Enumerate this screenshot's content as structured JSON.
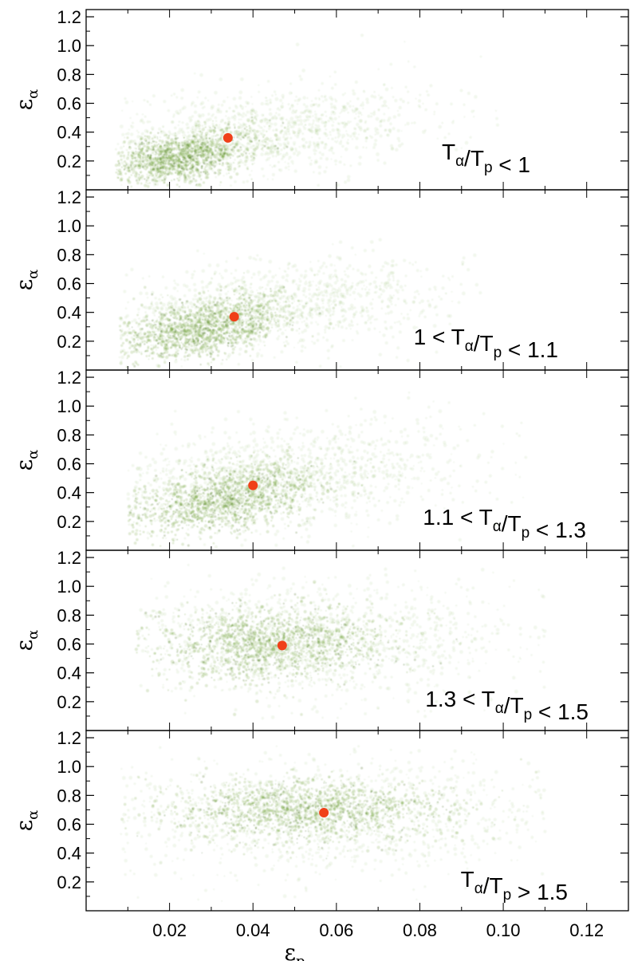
{
  "chart_data": [
    {
      "type": "heatmap",
      "annotation": {
        "parts": [
          {
            "t": "T",
            "sub": "α"
          },
          {
            "t": "/T",
            "sub": "p"
          },
          {
            "t": " < 1"
          }
        ]
      },
      "xlabel": "",
      "ylabel": "ε",
      "ylabel_sub": "α",
      "xlim": [
        0.0,
        0.13
      ],
      "ylim": [
        0.0,
        1.25
      ],
      "yticks": [
        "0.2",
        "0.4",
        "0.6",
        "0.8",
        "1.0",
        "1.2"
      ],
      "mean_point": {
        "x": 0.034,
        "y": 0.36,
        "color": "#f04018"
      },
      "density_core": {
        "x": 0.022,
        "y": 0.22,
        "sx": 0.009,
        "sy": 0.1,
        "rho": 0.5
      },
      "density_halo": {
        "x": 0.04,
        "y": 0.38,
        "sx": 0.022,
        "sy": 0.17,
        "rho": 0.4
      },
      "x_extent": [
        0.007,
        0.1
      ]
    },
    {
      "type": "heatmap",
      "annotation": {
        "parts": [
          {
            "t": "1 < T",
            "sub": "α"
          },
          {
            "t": "/T",
            "sub": "p"
          },
          {
            "t": " < 1.1"
          }
        ]
      },
      "xlabel": "",
      "ylabel": "ε",
      "ylabel_sub": "α",
      "xlim": [
        0.0,
        0.13
      ],
      "ylim": [
        0.0,
        1.25
      ],
      "yticks": [
        "0.2",
        "0.4",
        "0.6",
        "0.8",
        "1.0",
        "1.2"
      ],
      "mean_point": {
        "x": 0.0355,
        "y": 0.37,
        "color": "#f04018"
      },
      "density_core": {
        "x": 0.028,
        "y": 0.29,
        "sx": 0.01,
        "sy": 0.11,
        "rho": 0.5
      },
      "density_halo": {
        "x": 0.042,
        "y": 0.42,
        "sx": 0.022,
        "sy": 0.17,
        "rho": 0.4
      },
      "x_extent": [
        0.008,
        0.095
      ]
    },
    {
      "type": "heatmap",
      "annotation": {
        "parts": [
          {
            "t": "1.1 < T",
            "sub": "α"
          },
          {
            "t": "/T",
            "sub": "p"
          },
          {
            "t": " < 1.3"
          }
        ]
      },
      "xlabel": "",
      "ylabel": "ε",
      "ylabel_sub": "α",
      "xlim": [
        0.0,
        0.13
      ],
      "ylim": [
        0.0,
        1.25
      ],
      "yticks": [
        "0.2",
        "0.4",
        "0.6",
        "0.8",
        "1.0",
        "1.2"
      ],
      "mean_point": {
        "x": 0.04,
        "y": 0.45,
        "color": "#f04018"
      },
      "density_core": {
        "x": 0.033,
        "y": 0.36,
        "sx": 0.011,
        "sy": 0.12,
        "rho": 0.45
      },
      "density_halo": {
        "x": 0.046,
        "y": 0.5,
        "sx": 0.023,
        "sy": 0.19,
        "rho": 0.35
      },
      "x_extent": [
        0.01,
        0.11
      ]
    },
    {
      "type": "heatmap",
      "annotation": {
        "parts": [
          {
            "t": "1.3 < T",
            "sub": "α"
          },
          {
            "t": "/T",
            "sub": "p"
          },
          {
            "t": " < 1.5"
          }
        ]
      },
      "xlabel": "",
      "ylabel": "ε",
      "ylabel_sub": "α",
      "xlim": [
        0.0,
        0.13
      ],
      "ylim": [
        0.0,
        1.25
      ],
      "yticks": [
        "0.2",
        "0.4",
        "0.6",
        "0.8",
        "1.0",
        "1.2"
      ],
      "mean_point": {
        "x": 0.047,
        "y": 0.59,
        "color": "#f04018"
      },
      "density_core": {
        "x": 0.045,
        "y": 0.6,
        "sx": 0.014,
        "sy": 0.13,
        "rho": 0.1
      },
      "density_halo": {
        "x": 0.055,
        "y": 0.62,
        "sx": 0.026,
        "sy": 0.2,
        "rho": 0.05
      },
      "x_extent": [
        0.012,
        0.11
      ]
    },
    {
      "type": "heatmap",
      "annotation": {
        "parts": [
          {
            "t": "T",
            "sub": "α"
          },
          {
            "t": "/T",
            "sub": "p"
          },
          {
            "t": " > 1.5"
          }
        ]
      },
      "xlabel": "ε",
      "xlabel_sub": "p",
      "ylabel": "ε",
      "ylabel_sub": "α",
      "xlim": [
        0.0,
        0.13
      ],
      "ylim": [
        0.0,
        1.25
      ],
      "yticks": [
        "0.2",
        "0.4",
        "0.6",
        "0.8",
        "1.0",
        "1.2"
      ],
      "xticks": [
        "0.02",
        "0.04",
        "0.06",
        "0.08",
        "0.10",
        "0.12"
      ],
      "mean_point": {
        "x": 0.057,
        "y": 0.68,
        "color": "#f04018"
      },
      "density_core": {
        "x": 0.054,
        "y": 0.7,
        "sx": 0.016,
        "sy": 0.11,
        "rho": 0.0
      },
      "density_halo": {
        "x": 0.058,
        "y": 0.66,
        "sx": 0.03,
        "sy": 0.2,
        "rho": 0.0
      },
      "x_extent": [
        0.008,
        0.11
      ]
    }
  ],
  "colors": {
    "density": "#4d8a00",
    "density_dark": "#2e5a00",
    "mean_point": "#f04018"
  }
}
